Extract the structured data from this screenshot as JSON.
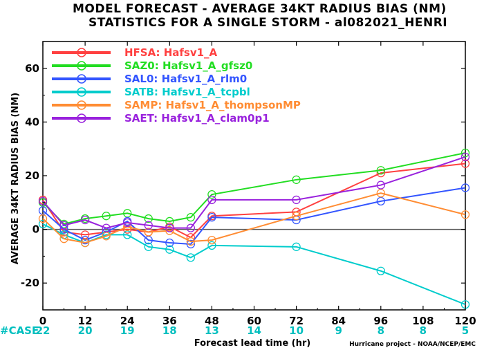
{
  "chart_data": {
    "type": "line",
    "title_line1": "MODEL FORECAST - AVERAGE 34KT RADIUS BIAS (NM)",
    "title_line2": "STATISTICS FOR A SINGLE STORM - al082021_HENRI",
    "xlabel": "Forecast lead time (hr)",
    "ylabel": "AVERAGE 34KT RADIUS BIAS (NM)",
    "credit": "Hurricane project - NOAA/NCEP/EMC",
    "xlim": [
      0,
      120
    ],
    "ylim": [
      -30,
      70
    ],
    "x_ticks": [
      "0",
      "12",
      "24",
      "36",
      "48",
      "60",
      "72",
      "84",
      "96",
      "108",
      "120"
    ],
    "y_ticks": [
      "-20",
      "0",
      "20",
      "40",
      "60"
    ],
    "case_label": "#CASE",
    "case_counts": [
      "22",
      "20",
      "19",
      "18",
      "13",
      "14",
      "10",
      "9",
      "8",
      "8",
      "5"
    ],
    "zero_line": true,
    "grid": false,
    "legend_position": "top-left",
    "series": [
      {
        "id": "HFSA",
        "legend": "HFSA:  Hafsv1_A",
        "color": "#ff4040",
        "x": [
          0,
          6,
          12,
          18,
          24,
          30,
          36,
          42,
          48,
          72,
          96,
          120
        ],
        "y": [
          11,
          -1,
          -2,
          -1,
          0,
          -1,
          1,
          -3,
          5,
          6.5,
          21,
          24.5
        ]
      },
      {
        "id": "SAZ0",
        "legend": "SAZ0:  Hafsv1_A_gfsz0",
        "color": "#22dd22",
        "x": [
          0,
          6,
          12,
          18,
          24,
          30,
          36,
          42,
          48,
          72,
          96,
          120
        ],
        "y": [
          10,
          2,
          4,
          5,
          6,
          4,
          3,
          4.5,
          13,
          18.5,
          22,
          28.5
        ]
      },
      {
        "id": "SAL0",
        "legend": "SAL0:  Hafsv1_A_rlm0",
        "color": "#3355ff",
        "x": [
          0,
          6,
          12,
          18,
          24,
          30,
          36,
          42,
          48,
          72,
          96,
          120
        ],
        "y": [
          7,
          0,
          -4,
          -1,
          3,
          -4,
          -5,
          -5.5,
          4.5,
          3.5,
          10.5,
          15.5
        ]
      },
      {
        "id": "SATB",
        "legend": "SATB:  Hafsv1_A_tcpbl",
        "color": "#00cccc",
        "x": [
          0,
          6,
          12,
          18,
          24,
          30,
          36,
          42,
          48,
          72,
          96,
          120
        ],
        "y": [
          2,
          -2,
          -5,
          -2,
          -2,
          -6.5,
          -7.5,
          -10.5,
          -6,
          -6.5,
          -15.5,
          -28
        ]
      },
      {
        "id": "SAMP",
        "legend": "SAMP:  Hafsv1_A_thompsonMP",
        "color": "#ff8c33",
        "x": [
          0,
          6,
          12,
          18,
          24,
          30,
          36,
          42,
          48,
          72,
          96,
          120
        ],
        "y": [
          4,
          -3.5,
          -5,
          -2.5,
          1,
          -1,
          -0.5,
          -4.5,
          -4,
          5,
          13.5,
          5.5
        ]
      },
      {
        "id": "SAET",
        "legend": "SAET:  Hafsv1_A_clam0p1",
        "color": "#9922dd",
        "x": [
          0,
          6,
          12,
          18,
          24,
          30,
          36,
          42,
          48,
          72,
          96,
          120
        ],
        "y": [
          10.5,
          1.5,
          3.5,
          0.5,
          2.5,
          1.5,
          0.5,
          0.5,
          11,
          11,
          16.5,
          27
        ]
      }
    ]
  }
}
